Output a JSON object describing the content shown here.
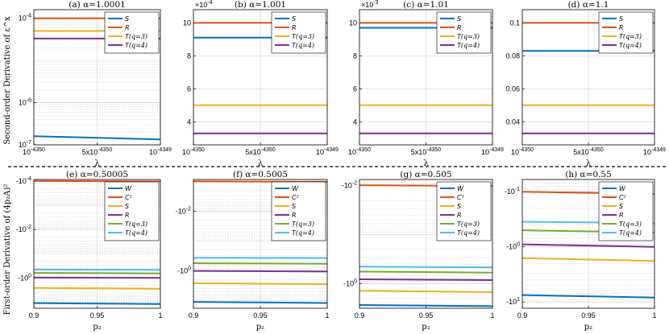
{
  "figure": {
    "row1_ylabel": "Second-order Derivative of ε^x",
    "row2_ylabel": "First-order Derivative of (4p₂A)²",
    "row1_xlabel": "λ",
    "row2_xlabel": "p₂"
  },
  "colors": {
    "blue": "#0072BD",
    "orange": "#D95319",
    "yellow": "#EDB120",
    "purple": "#7E2F8E",
    "green": "#77AC30",
    "cyan": "#4DBEEE"
  },
  "chart_data": [
    {
      "type": "line",
      "title": "(a) α=1.0001",
      "scale": "log",
      "ylim": [
        1e-07,
        0.00016
      ],
      "xlabel": "λ",
      "ylabel": "Second-order Derivative of ε^x",
      "x_ticks": [
        "10^-4350",
        "5x10^-4350",
        "10^-4349"
      ],
      "y_ticks": [
        {
          "v": 0.0001,
          "label": "10^-4"
        },
        {
          "v": 1e-06,
          "label": "10^-6"
        },
        {
          "v": 1e-07,
          "label": "10^-7"
        }
      ],
      "legend": [
        "S",
        "R",
        "T(q=3)",
        "T(q=4)"
      ],
      "series": [
        {
          "name": "S",
          "color": "#0072BD",
          "values": [
            1.6e-07,
            1.35e-07
          ]
        },
        {
          "name": "R",
          "color": "#D95319",
          "values": [
            0.0001,
            0.0001
          ]
        },
        {
          "name": "T(q=3)",
          "color": "#EDB120",
          "values": [
            5e-05,
            5e-05
          ]
        },
        {
          "name": "T(q=4)",
          "color": "#7E2F8E",
          "values": [
            3.3e-05,
            3.3e-05
          ]
        }
      ]
    },
    {
      "type": "line",
      "title": "(b) α=1.001",
      "scale": "linear",
      "ylim": [
        0.00026,
        0.00108
      ],
      "exponent": "×10^-4",
      "xlabel": "λ",
      "ylabel": "",
      "x_ticks": [
        "10^-4350",
        "5x10^-4350",
        "10^-4349"
      ],
      "y_ticks": [
        {
          "v": 0.001,
          "label": "10"
        },
        {
          "v": 0.0008,
          "label": "8"
        },
        {
          "v": 0.0006,
          "label": "6"
        },
        {
          "v": 0.0004,
          "label": "4"
        }
      ],
      "legend": [
        "S",
        "R",
        "T(q=3)",
        "T(q=4)"
      ],
      "series": [
        {
          "name": "S",
          "color": "#0072BD",
          "values": [
            0.00091,
            0.00091
          ]
        },
        {
          "name": "R",
          "color": "#D95319",
          "values": [
            0.001,
            0.001
          ]
        },
        {
          "name": "T(q=3)",
          "color": "#EDB120",
          "values": [
            0.0005,
            0.0005
          ]
        },
        {
          "name": "T(q=4)",
          "color": "#7E2F8E",
          "values": [
            0.00033,
            0.00033
          ]
        }
      ]
    },
    {
      "type": "line",
      "title": "(c) α=1.01",
      "scale": "linear",
      "ylim": [
        0.0026,
        0.0108
      ],
      "exponent": "×10^-3",
      "xlabel": "λ",
      "ylabel": "",
      "x_ticks": [
        "10^-4350",
        "5x10^-4350",
        "10^-4349"
      ],
      "y_ticks": [
        {
          "v": 0.01,
          "label": "10"
        },
        {
          "v": 0.008,
          "label": "8"
        },
        {
          "v": 0.006,
          "label": "6"
        },
        {
          "v": 0.004,
          "label": "4"
        }
      ],
      "legend": [
        "S",
        "R",
        "T(q=3)",
        "T(q=4)"
      ],
      "series": [
        {
          "name": "S",
          "color": "#0072BD",
          "values": [
            0.0097,
            0.0097
          ]
        },
        {
          "name": "R",
          "color": "#D95319",
          "values": [
            0.01,
            0.01
          ]
        },
        {
          "name": "T(q=3)",
          "color": "#EDB120",
          "values": [
            0.005,
            0.005
          ]
        },
        {
          "name": "T(q=4)",
          "color": "#7E2F8E",
          "values": [
            0.0033,
            0.0033
          ]
        }
      ]
    },
    {
      "type": "line",
      "title": "(d) α=1.1",
      "scale": "linear",
      "ylim": [
        0.026,
        0.108
      ],
      "xlabel": "λ",
      "ylabel": "",
      "x_ticks": [
        "10^-4350",
        "5x10^-4350",
        "10^-4349"
      ],
      "y_ticks": [
        {
          "v": 0.1,
          "label": "0.1"
        },
        {
          "v": 0.08,
          "label": "0.08"
        },
        {
          "v": 0.06,
          "label": "0.06"
        },
        {
          "v": 0.04,
          "label": "0.04"
        }
      ],
      "legend": [
        "S",
        "R",
        "T(q=3)",
        "T(q=4)"
      ],
      "series": [
        {
          "name": "S",
          "color": "#0072BD",
          "values": [
            0.083,
            0.083
          ]
        },
        {
          "name": "R",
          "color": "#D95319",
          "values": [
            0.1,
            0.1
          ]
        },
        {
          "name": "T(q=3)",
          "color": "#EDB120",
          "values": [
            0.05,
            0.05
          ]
        },
        {
          "name": "T(q=4)",
          "color": "#7E2F8E",
          "values": [
            0.033,
            0.033
          ]
        }
      ]
    },
    {
      "type": "line",
      "title": "(e) α=0.50005",
      "scale": "neglog",
      "ylim": [
        -8.5e-05,
        -18
      ],
      "xlabel": "p₂",
      "ylabel": "First-order Derivative of (4p₂A)²",
      "x_ticks": [
        "0.9",
        "0.95",
        "1"
      ],
      "y_ticks": [
        {
          "v": -0.0001,
          "label": "-10^-4"
        },
        {
          "v": -0.01,
          "label": "-10^-2"
        },
        {
          "v": -1,
          "label": "-10^0"
        }
      ],
      "legend": [
        "W",
        "C²",
        "S",
        "R",
        "T(q=3)",
        "T(q=4)"
      ],
      "series": [
        {
          "name": "W",
          "color": "#0072BD",
          "values": [
            -11,
            -12
          ]
        },
        {
          "name": "C²",
          "color": "#D95319",
          "values": [
            -9.8e-05,
            -0.000102
          ]
        },
        {
          "name": "S",
          "color": "#EDB120",
          "values": [
            -2.6,
            -2.8
          ]
        },
        {
          "name": "R",
          "color": "#7E2F8E",
          "values": [
            -0.97,
            -1.0
          ]
        },
        {
          "name": "T(q=3)",
          "color": "#77AC30",
          "values": [
            -0.62,
            -0.65
          ]
        },
        {
          "name": "T(q=4)",
          "color": "#4DBEEE",
          "values": [
            -0.45,
            -0.46
          ]
        }
      ]
    },
    {
      "type": "line",
      "title": "(f) α=0.5005",
      "scale": "neglog",
      "ylim": [
        -0.00085,
        -18
      ],
      "xlabel": "p₂",
      "ylabel": "",
      "x_ticks": [
        "0.9",
        "0.95",
        "1"
      ],
      "y_ticks": [
        {
          "v": -0.01,
          "label": "-10^-2"
        },
        {
          "v": -1,
          "label": "-10^0"
        }
      ],
      "legend": [
        "W",
        "C²",
        "S",
        "R",
        "T(q=3)",
        "T(q=4)"
      ],
      "series": [
        {
          "name": "W",
          "color": "#0072BD",
          "values": [
            -11,
            -12
          ]
        },
        {
          "name": "C²",
          "color": "#D95319",
          "values": [
            -0.00098,
            -0.00102
          ]
        },
        {
          "name": "S",
          "color": "#EDB120",
          "values": [
            -2.6,
            -2.8
          ]
        },
        {
          "name": "R",
          "color": "#7E2F8E",
          "values": [
            -1.0,
            -1.05
          ]
        },
        {
          "name": "T(q=3)",
          "color": "#77AC30",
          "values": [
            -0.55,
            -0.58
          ]
        },
        {
          "name": "T(q=4)",
          "color": "#4DBEEE",
          "values": [
            -0.36,
            -0.37
          ]
        }
      ]
    },
    {
      "type": "line",
      "title": "(g) α=0.505",
      "scale": "neglog",
      "ylim": [
        -0.0075,
        -3.2
      ],
      "xlabel": "p₂",
      "ylabel": "",
      "x_ticks": [
        "0.9",
        "0.95",
        "1"
      ],
      "y_ticks": [
        {
          "v": -0.01,
          "label": "-10^-2"
        },
        {
          "v": -1,
          "label": "-10^0"
        }
      ],
      "legend": [
        "W",
        "C²",
        "S",
        "R",
        "T(q=3)",
        "T(q=4)"
      ],
      "series": [
        {
          "name": "W",
          "color": "#0072BD",
          "values": [
            -2.75,
            -2.9
          ]
        },
        {
          "name": "C²",
          "color": "#D95319",
          "values": [
            -0.0098,
            -0.0102
          ]
        },
        {
          "name": "S",
          "color": "#EDB120",
          "values": [
            -1.4,
            -1.5
          ]
        },
        {
          "name": "R",
          "color": "#7E2F8E",
          "values": [
            -0.82,
            -0.85
          ]
        },
        {
          "name": "T(q=3)",
          "color": "#77AC30",
          "values": [
            -0.57,
            -0.6
          ]
        },
        {
          "name": "T(q=4)",
          "color": "#4DBEEE",
          "values": [
            -0.45,
            -0.47
          ]
        }
      ]
    },
    {
      "type": "line",
      "title": "(h) α=0.55",
      "scale": "neglog",
      "ylim": [
        -0.06,
        -13
      ],
      "xlabel": "p₂",
      "ylabel": "",
      "x_ticks": [
        "0.9",
        "0.95",
        "1"
      ],
      "y_ticks": [
        {
          "v": -0.1,
          "label": "-10^-1"
        },
        {
          "v": -1,
          "label": "-10^0"
        },
        {
          "v": -10,
          "label": "-10^1"
        }
      ],
      "legend": [
        "W",
        "C²",
        "S",
        "R",
        "T(q=3)",
        "T(q=4)"
      ],
      "series": [
        {
          "name": "W",
          "color": "#0072BD",
          "values": [
            -7.5,
            -8.3
          ]
        },
        {
          "name": "C²",
          "color": "#D95319",
          "values": [
            -0.1,
            -0.11
          ]
        },
        {
          "name": "S",
          "color": "#EDB120",
          "values": [
            -1.6,
            -1.8
          ]
        },
        {
          "name": "R",
          "color": "#7E2F8E",
          "values": [
            -0.9,
            -1.0
          ]
        },
        {
          "name": "T(q=3)",
          "color": "#77AC30",
          "values": [
            -0.5,
            -0.55
          ]
        },
        {
          "name": "T(q=4)",
          "color": "#4DBEEE",
          "values": [
            -0.35,
            -0.37
          ]
        }
      ]
    }
  ]
}
